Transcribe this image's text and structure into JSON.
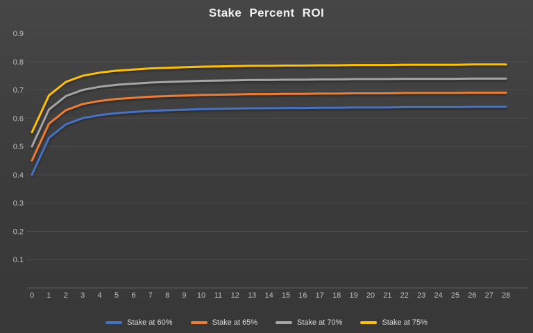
{
  "title": "Stake Percent ROI",
  "theme": {
    "background_top": "#464646",
    "background_bottom": "#383838",
    "gridline_color": "#4d4d4d",
    "axis_line_color": "#5e5e5e",
    "tick_label_color": "#bfbfbf",
    "title_color": "#f2f2f2",
    "legend_text_color": "#dcdcdc"
  },
  "chart_data": {
    "type": "line",
    "title": "Stake Percent ROI",
    "xlabel": "",
    "ylabel": "",
    "grid": true,
    "legend_position": "bottom",
    "ylim": [
      0,
      0.9
    ],
    "ytick_interval": 0.1,
    "ytick_labels_top_to_bottom": [
      "0.9",
      "0.8",
      "0.7",
      "0.6",
      "0.5",
      "0.4",
      "0.3",
      "0.2",
      "0.1"
    ],
    "x": [
      0,
      1,
      2,
      3,
      4,
      5,
      6,
      7,
      8,
      9,
      10,
      11,
      12,
      13,
      14,
      15,
      16,
      17,
      18,
      19,
      20,
      21,
      22,
      23,
      24,
      25,
      26,
      27,
      28
    ],
    "series": [
      {
        "name": "Stake at 60%",
        "color": "#4472C4",
        "values": [
          0.4,
          0.53,
          0.578,
          0.6,
          0.611,
          0.618,
          0.622,
          0.626,
          0.628,
          0.63,
          0.632,
          0.633,
          0.634,
          0.635,
          0.635,
          0.636,
          0.636,
          0.637,
          0.637,
          0.638,
          0.638,
          0.638,
          0.639,
          0.639,
          0.639,
          0.639,
          0.64,
          0.64,
          0.64
        ]
      },
      {
        "name": "Stake at 65%",
        "color": "#ED7D31",
        "values": [
          0.45,
          0.58,
          0.628,
          0.65,
          0.661,
          0.668,
          0.672,
          0.676,
          0.678,
          0.68,
          0.682,
          0.683,
          0.684,
          0.685,
          0.685,
          0.686,
          0.686,
          0.687,
          0.687,
          0.688,
          0.688,
          0.688,
          0.689,
          0.689,
          0.689,
          0.689,
          0.69,
          0.69,
          0.69
        ]
      },
      {
        "name": "Stake at 70%",
        "color": "#A5A5A5",
        "values": [
          0.5,
          0.63,
          0.678,
          0.7,
          0.711,
          0.718,
          0.722,
          0.726,
          0.728,
          0.73,
          0.732,
          0.733,
          0.734,
          0.735,
          0.735,
          0.736,
          0.736,
          0.737,
          0.737,
          0.738,
          0.738,
          0.738,
          0.739,
          0.739,
          0.739,
          0.739,
          0.74,
          0.74,
          0.74
        ]
      },
      {
        "name": "Stake at 75%",
        "color": "#FFC000",
        "values": [
          0.55,
          0.68,
          0.728,
          0.75,
          0.761,
          0.768,
          0.772,
          0.776,
          0.778,
          0.78,
          0.782,
          0.783,
          0.784,
          0.785,
          0.785,
          0.786,
          0.786,
          0.787,
          0.787,
          0.788,
          0.788,
          0.788,
          0.789,
          0.789,
          0.789,
          0.789,
          0.79,
          0.79,
          0.79
        ]
      }
    ]
  }
}
